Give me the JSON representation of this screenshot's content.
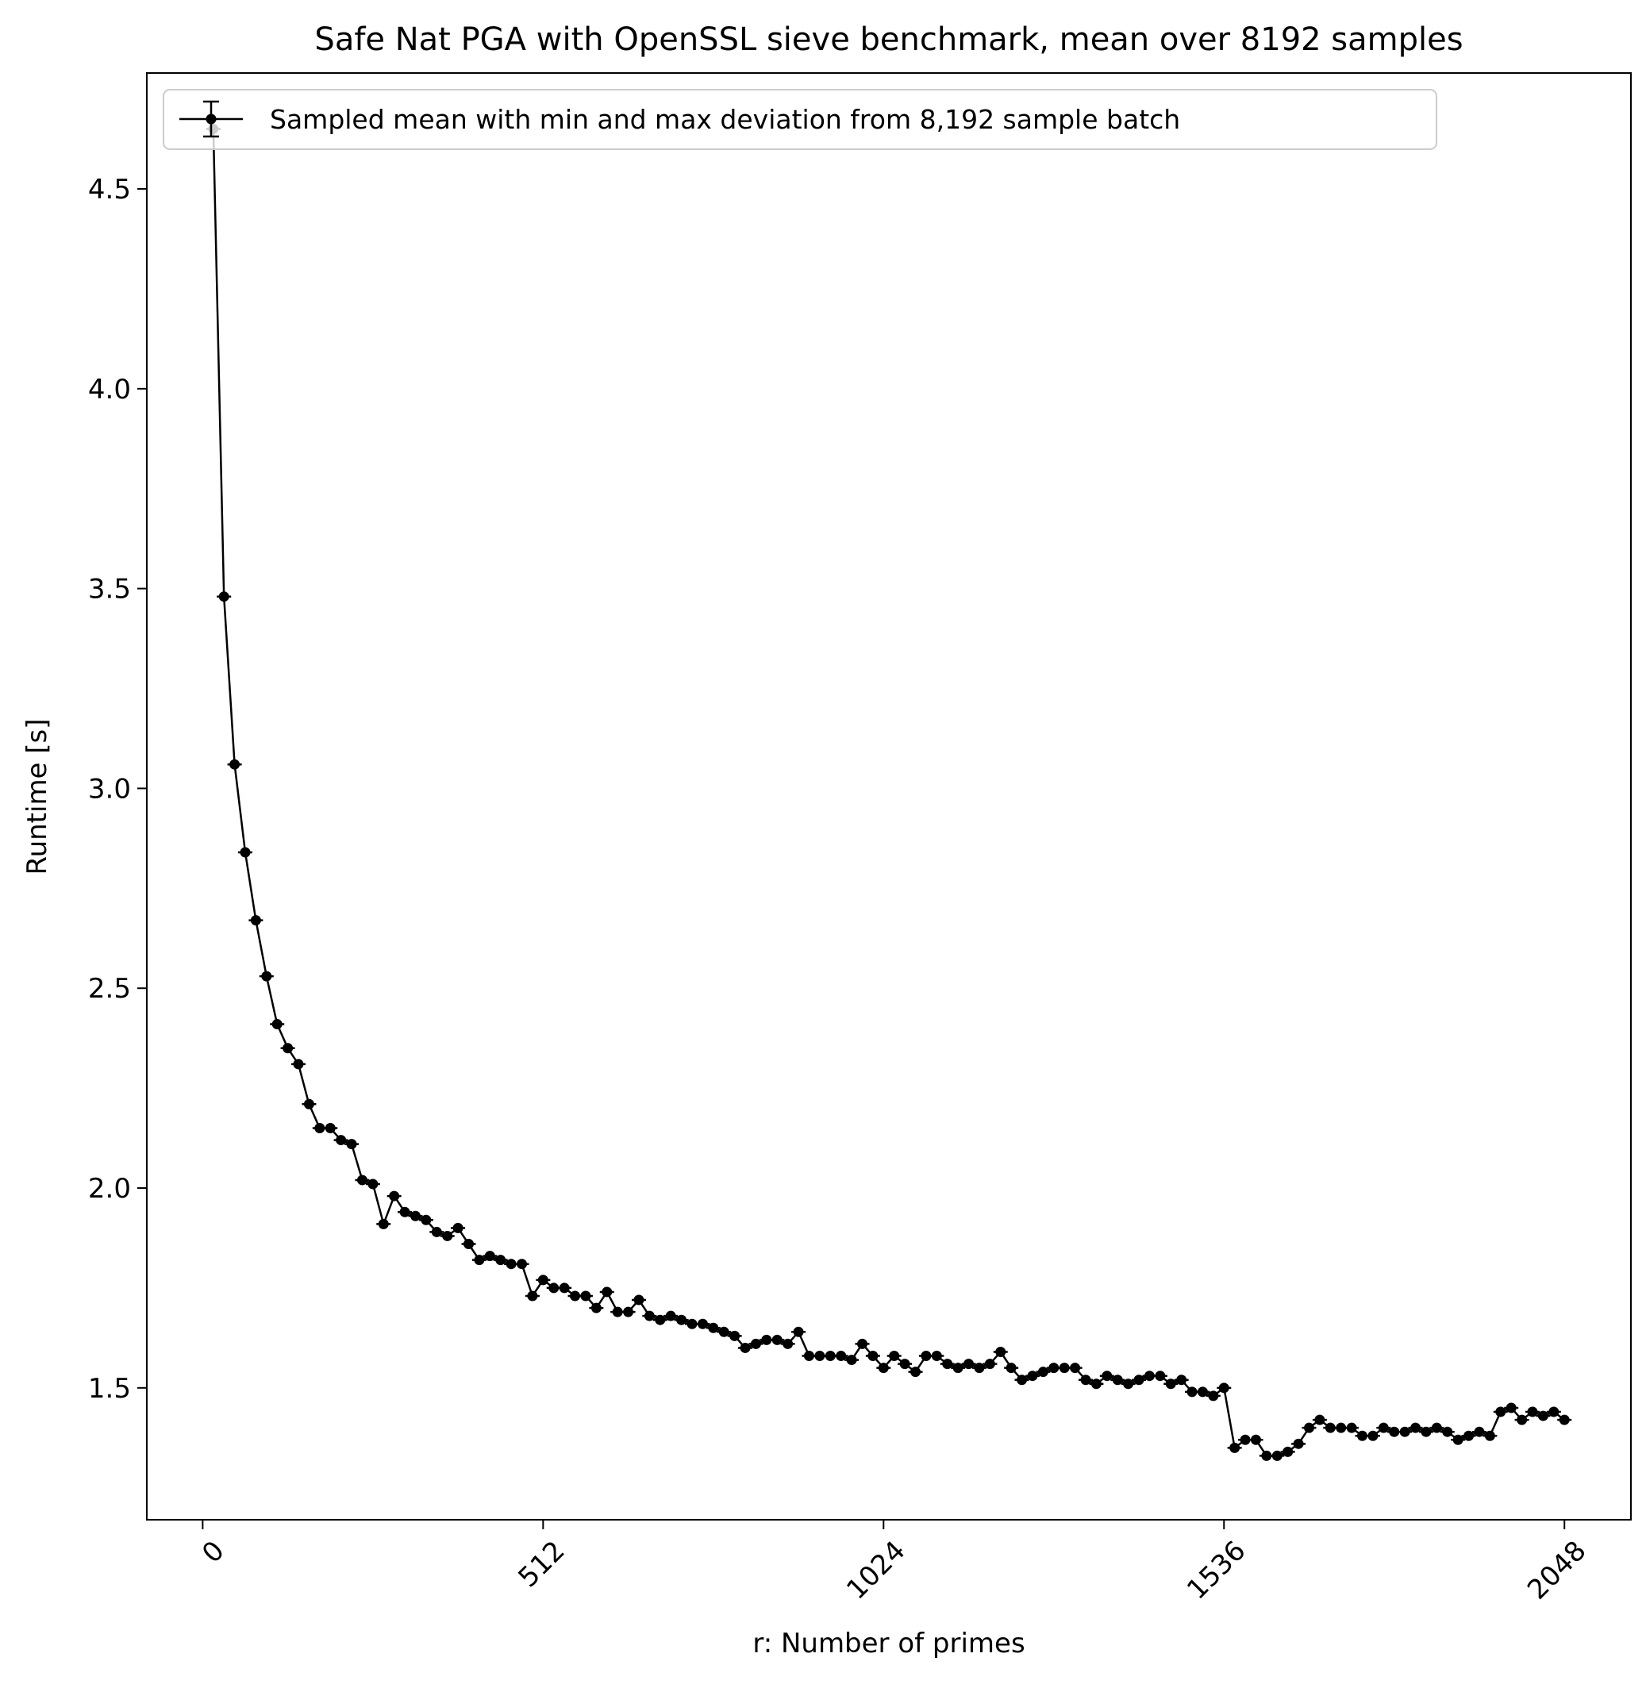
{
  "chart_data": {
    "type": "line",
    "title": "Safe Nat PGA with OpenSSL sieve benchmark, mean over 8192 samples",
    "xlabel": "r: Number of primes",
    "ylabel": "Runtime [s]",
    "xlim": [
      -84,
      2148
    ],
    "ylim": [
      1.17,
      4.79
    ],
    "xticks": [
      0,
      512,
      1024,
      1536,
      2048
    ],
    "xtick_labels": [
      "0",
      "512",
      "1024",
      "1536",
      "2048"
    ],
    "yticks": [
      1.5,
      2.0,
      2.5,
      3.0,
      3.5,
      4.0,
      4.5
    ],
    "ytick_labels": [
      "1.5",
      "2.0",
      "2.5",
      "3.0",
      "3.5",
      "4.0",
      "4.5"
    ],
    "grid": false,
    "legend_position": "top-left",
    "series_color": "#000000",
    "series": [
      {
        "name": "Sampled mean with min and max deviation from 8,192 sample batch",
        "x": [
          16,
          32,
          48,
          64,
          80,
          96,
          112,
          128,
          144,
          160,
          176,
          192,
          208,
          224,
          240,
          256,
          272,
          288,
          304,
          320,
          336,
          352,
          368,
          384,
          400,
          416,
          432,
          448,
          464,
          480,
          496,
          512,
          528,
          544,
          560,
          576,
          592,
          608,
          624,
          640,
          656,
          672,
          688,
          704,
          720,
          736,
          752,
          768,
          784,
          800,
          816,
          832,
          848,
          864,
          880,
          896,
          912,
          928,
          944,
          960,
          976,
          992,
          1008,
          1024,
          1040,
          1056,
          1072,
          1088,
          1104,
          1120,
          1136,
          1152,
          1168,
          1184,
          1200,
          1216,
          1232,
          1248,
          1264,
          1280,
          1296,
          1312,
          1328,
          1344,
          1360,
          1376,
          1392,
          1408,
          1424,
          1440,
          1456,
          1472,
          1488,
          1504,
          1520,
          1536,
          1552,
          1568,
          1584,
          1600,
          1616,
          1632,
          1648,
          1664,
          1680,
          1696,
          1712,
          1728,
          1744,
          1760,
          1776,
          1792,
          1808,
          1824,
          1840,
          1856,
          1872,
          1888,
          1904,
          1920,
          1936,
          1952,
          1968,
          1984,
          2000,
          2016,
          2032,
          2048
        ],
        "values": [
          4.65,
          3.48,
          3.06,
          2.84,
          2.67,
          2.53,
          2.41,
          2.35,
          2.31,
          2.21,
          2.15,
          2.15,
          2.12,
          2.11,
          2.02,
          2.01,
          1.91,
          1.98,
          1.94,
          1.93,
          1.92,
          1.89,
          1.88,
          1.9,
          1.86,
          1.82,
          1.83,
          1.82,
          1.81,
          1.81,
          1.73,
          1.77,
          1.75,
          1.75,
          1.73,
          1.73,
          1.7,
          1.74,
          1.69,
          1.69,
          1.72,
          1.68,
          1.67,
          1.68,
          1.67,
          1.66,
          1.66,
          1.65,
          1.64,
          1.63,
          1.6,
          1.61,
          1.62,
          1.62,
          1.61,
          1.64,
          1.58,
          1.58,
          1.58,
          1.58,
          1.57,
          1.61,
          1.58,
          1.55,
          1.58,
          1.56,
          1.54,
          1.58,
          1.58,
          1.56,
          1.55,
          1.56,
          1.55,
          1.56,
          1.59,
          1.55,
          1.52,
          1.53,
          1.54,
          1.55,
          1.55,
          1.55,
          1.52,
          1.51,
          1.53,
          1.52,
          1.51,
          1.52,
          1.53,
          1.53,
          1.51,
          1.52,
          1.49,
          1.49,
          1.48,
          1.5,
          1.35,
          1.37,
          1.37,
          1.33,
          1.33,
          1.34,
          1.36,
          1.4,
          1.42,
          1.4,
          1.4,
          1.4,
          1.38,
          1.38,
          1.4,
          1.39,
          1.39,
          1.4,
          1.39,
          1.4,
          1.39,
          1.37,
          1.38,
          1.39,
          1.38,
          1.44,
          1.45,
          1.42,
          1.44,
          1.43,
          1.44,
          1.42
        ]
      }
    ]
  }
}
